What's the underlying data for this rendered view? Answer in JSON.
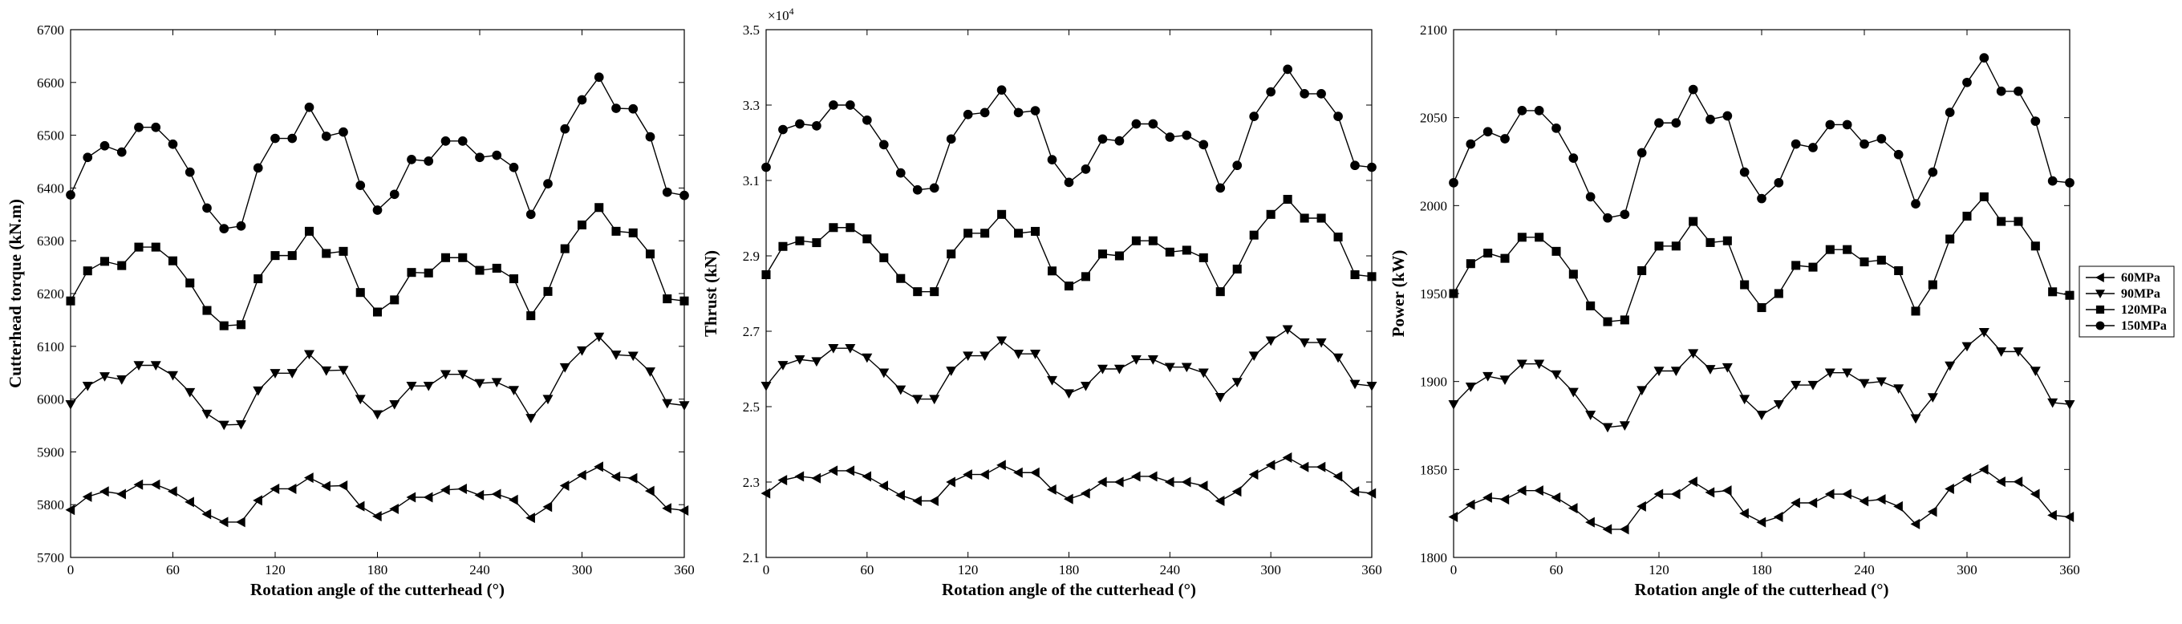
{
  "legend": {
    "entries": [
      "60MPa",
      "90MPa",
      "120MPa",
      "150MPa"
    ]
  },
  "chart_data": [
    {
      "type": "line",
      "xlabel": "Rotation angle of the cutterhead (°)",
      "ylabel": "Cutterhead torque (kN.m)",
      "xlim": [
        0,
        360
      ],
      "ylim": [
        5700,
        6700
      ],
      "xticks": [
        0,
        60,
        120,
        180,
        240,
        300,
        360
      ],
      "yticks": [
        5700,
        5800,
        5900,
        6000,
        6100,
        6200,
        6300,
        6400,
        6500,
        6600,
        6700
      ],
      "exponent_label": "",
      "x": [
        0,
        10,
        20,
        30,
        40,
        50,
        60,
        70,
        80,
        90,
        100,
        110,
        120,
        130,
        140,
        150,
        160,
        170,
        180,
        190,
        200,
        210,
        220,
        230,
        240,
        250,
        260,
        270,
        280,
        290,
        300,
        310,
        320,
        330,
        340,
        350,
        360
      ],
      "series": [
        {
          "name": "60MPa",
          "marker": "triangle-left",
          "values": [
            5790,
            5815,
            5825,
            5820,
            5838,
            5838,
            5825,
            5805,
            5782,
            5767,
            5767,
            5808,
            5830,
            5830,
            5851,
            5835,
            5836,
            5797,
            5778,
            5792,
            5814,
            5814,
            5828,
            5830,
            5818,
            5820,
            5809,
            5775,
            5796,
            5836,
            5856,
            5872,
            5853,
            5850,
            5826,
            5793,
            5789
          ]
        },
        {
          "name": "90MPa",
          "marker": "triangle-down",
          "values": [
            5990,
            6025,
            6043,
            6037,
            6064,
            6064,
            6045,
            6013,
            5972,
            5951,
            5952,
            6016,
            6049,
            6049,
            6085,
            6054,
            6055,
            6000,
            5971,
            5990,
            6025,
            6025,
            6047,
            6047,
            6030,
            6032,
            6017,
            5964,
            6000,
            6060,
            6092,
            6118,
            6084,
            6082,
            6052,
            5992,
            5988
          ]
        },
        {
          "name": "120MPa",
          "marker": "square",
          "values": [
            6186,
            6243,
            6261,
            6253,
            6288,
            6288,
            6262,
            6220,
            6168,
            6139,
            6141,
            6228,
            6272,
            6272,
            6318,
            6276,
            6280,
            6202,
            6165,
            6188,
            6240,
            6239,
            6268,
            6268,
            6244,
            6248,
            6228,
            6158,
            6204,
            6285,
            6330,
            6363,
            6318,
            6315,
            6275,
            6190,
            6186
          ]
        },
        {
          "name": "150MPa",
          "marker": "circle",
          "values": [
            6387,
            6458,
            6480,
            6468,
            6515,
            6515,
            6483,
            6430,
            6362,
            6323,
            6328,
            6438,
            6494,
            6494,
            6553,
            6498,
            6506,
            6405,
            6358,
            6388,
            6454,
            6451,
            6489,
            6489,
            6458,
            6462,
            6439,
            6350,
            6408,
            6512,
            6567,
            6610,
            6551,
            6550,
            6497,
            6392,
            6386
          ]
        }
      ]
    },
    {
      "type": "line",
      "xlabel": "Rotation angle of the cutterhead (°)",
      "ylabel": "Thrust (kN)",
      "xlim": [
        0,
        360
      ],
      "ylim": [
        2.1,
        3.5
      ],
      "xticks": [
        0,
        60,
        120,
        180,
        240,
        300,
        360
      ],
      "yticks": [
        2.1,
        2.3,
        2.5,
        2.7,
        2.9,
        3.1,
        3.3,
        3.5
      ],
      "exponent_label": "×10",
      "exponent_power": "4",
      "x": [
        0,
        10,
        20,
        30,
        40,
        50,
        60,
        70,
        80,
        90,
        100,
        110,
        120,
        130,
        140,
        150,
        160,
        170,
        180,
        190,
        200,
        210,
        220,
        230,
        240,
        250,
        260,
        270,
        280,
        290,
        300,
        310,
        320,
        330,
        340,
        350,
        360
      ],
      "series": [
        {
          "name": "60MPa",
          "marker": "triangle-left",
          "values": [
            2.27,
            2.305,
            2.315,
            2.31,
            2.33,
            2.33,
            2.315,
            2.29,
            2.265,
            2.25,
            2.25,
            2.3,
            2.32,
            2.32,
            2.345,
            2.325,
            2.325,
            2.28,
            2.255,
            2.27,
            2.3,
            2.3,
            2.315,
            2.315,
            2.3,
            2.3,
            2.29,
            2.25,
            2.275,
            2.32,
            2.345,
            2.365,
            2.34,
            2.34,
            2.315,
            2.275,
            2.27
          ]
        },
        {
          "name": "90MPa",
          "marker": "triangle-down",
          "values": [
            2.555,
            2.61,
            2.625,
            2.62,
            2.655,
            2.655,
            2.63,
            2.59,
            2.545,
            2.52,
            2.52,
            2.595,
            2.635,
            2.635,
            2.675,
            2.64,
            2.64,
            2.57,
            2.535,
            2.555,
            2.6,
            2.6,
            2.625,
            2.625,
            2.605,
            2.605,
            2.59,
            2.525,
            2.565,
            2.635,
            2.675,
            2.705,
            2.67,
            2.67,
            2.63,
            2.56,
            2.555
          ]
        },
        {
          "name": "120MPa",
          "marker": "square",
          "values": [
            2.85,
            2.925,
            2.94,
            2.935,
            2.975,
            2.975,
            2.945,
            2.895,
            2.84,
            2.805,
            2.805,
            2.905,
            2.96,
            2.96,
            3.01,
            2.96,
            2.965,
            2.86,
            2.82,
            2.845,
            2.905,
            2.9,
            2.94,
            2.94,
            2.91,
            2.915,
            2.895,
            2.805,
            2.865,
            2.955,
            3.01,
            3.05,
            3.0,
            3.0,
            2.95,
            2.85,
            2.845
          ]
        },
        {
          "name": "150MPa",
          "marker": "circle",
          "values": [
            3.135,
            3.235,
            3.25,
            3.245,
            3.3,
            3.3,
            3.26,
            3.195,
            3.12,
            3.075,
            3.08,
            3.21,
            3.275,
            3.28,
            3.34,
            3.28,
            3.285,
            3.155,
            3.095,
            3.13,
            3.21,
            3.205,
            3.25,
            3.25,
            3.215,
            3.22,
            3.195,
            3.08,
            3.14,
            3.27,
            3.335,
            3.395,
            3.33,
            3.33,
            3.27,
            3.14,
            3.135
          ]
        }
      ]
    },
    {
      "type": "line",
      "xlabel": "Rotation angle of the cutterhead (°)",
      "ylabel": "Power (kW)",
      "xlim": [
        0,
        360
      ],
      "ylim": [
        1800,
        2100
      ],
      "xticks": [
        0,
        60,
        120,
        180,
        240,
        300,
        360
      ],
      "yticks": [
        1800,
        1850,
        1900,
        1950,
        2000,
        2050,
        2100
      ],
      "exponent_label": "",
      "x": [
        0,
        10,
        20,
        30,
        40,
        50,
        60,
        70,
        80,
        90,
        100,
        110,
        120,
        130,
        140,
        150,
        160,
        170,
        180,
        190,
        200,
        210,
        220,
        230,
        240,
        250,
        260,
        270,
        280,
        290,
        300,
        310,
        320,
        330,
        340,
        350,
        360
      ],
      "series": [
        {
          "name": "60MPa",
          "marker": "triangle-left",
          "values": [
            1823,
            1830,
            1834,
            1833,
            1838,
            1838,
            1834,
            1828,
            1820,
            1816,
            1816,
            1829,
            1836,
            1836,
            1843,
            1837,
            1838,
            1825,
            1820,
            1823,
            1831,
            1831,
            1836,
            1836,
            1832,
            1833,
            1829,
            1819,
            1826,
            1839,
            1845,
            1850,
            1843,
            1843,
            1836,
            1824,
            1823
          ]
        },
        {
          "name": "90MPa",
          "marker": "triangle-down",
          "values": [
            1887,
            1897,
            1903,
            1901,
            1910,
            1910,
            1904,
            1894,
            1881,
            1874,
            1875,
            1895,
            1906,
            1906,
            1916,
            1907,
            1908,
            1890,
            1881,
            1887,
            1898,
            1898,
            1905,
            1905,
            1899,
            1900,
            1896,
            1879,
            1891,
            1909,
            1920,
            1928,
            1917,
            1917,
            1906,
            1888,
            1887
          ]
        },
        {
          "name": "120MPa",
          "marker": "square",
          "values": [
            1950,
            1967,
            1973,
            1970,
            1982,
            1982,
            1974,
            1961,
            1943,
            1934,
            1935,
            1963,
            1977,
            1977,
            1991,
            1979,
            1980,
            1955,
            1942,
            1950,
            1966,
            1965,
            1975,
            1975,
            1968,
            1969,
            1963,
            1940,
            1955,
            1981,
            1994,
            2005,
            1991,
            1991,
            1977,
            1951,
            1949
          ]
        },
        {
          "name": "150MPa",
          "marker": "circle",
          "values": [
            2013,
            2035,
            2042,
            2038,
            2054,
            2054,
            2044,
            2027,
            2005,
            1993,
            1995,
            2030,
            2047,
            2047,
            2066,
            2049,
            2051,
            2019,
            2004,
            2013,
            2035,
            2033,
            2046,
            2046,
            2035,
            2038,
            2029,
            2001,
            2019,
            2053,
            2070,
            2084,
            2065,
            2065,
            2048,
            2014,
            2013
          ]
        }
      ]
    }
  ]
}
